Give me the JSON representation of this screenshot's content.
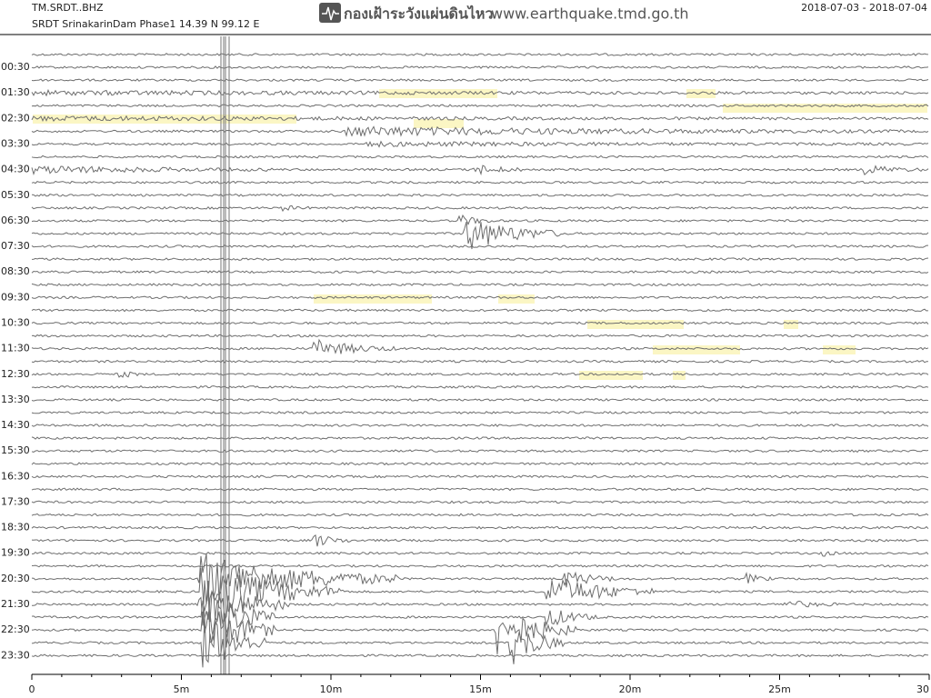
{
  "header": {
    "channel": "TM.SRDT..BHZ",
    "station": "SRDT SrinakarinDam Phase1  14.39 N 99.12 E",
    "agency": "กองเฝ้าระวังแผ่นดินไหว",
    "website": "www.earthquake.tmd.go.th",
    "date_range": "2018-07-03 - 2018-07-04"
  },
  "row_labels": [
    "00:30",
    "01:30",
    "02:30",
    "03:30",
    "04:30",
    "05:30",
    "06:30",
    "07:30",
    "08:30",
    "09:30",
    "10:30",
    "11:30",
    "12:30",
    "13:30",
    "14:30",
    "15:30",
    "16:30",
    "17:30",
    "18:30",
    "19:30",
    "20:30",
    "21:30",
    "22:30",
    "23:30"
  ],
  "x_axis": {
    "xlim": [
      0,
      30
    ],
    "ticks": [
      0,
      {
        "value": 5,
        "label": "5m"
      },
      {
        "value": 10,
        "label": "10m"
      },
      {
        "value": 15,
        "label": "15m"
      },
      {
        "value": 20,
        "label": "20m"
      },
      {
        "value": 25,
        "label": "25m"
      },
      30
    ]
  }
}
